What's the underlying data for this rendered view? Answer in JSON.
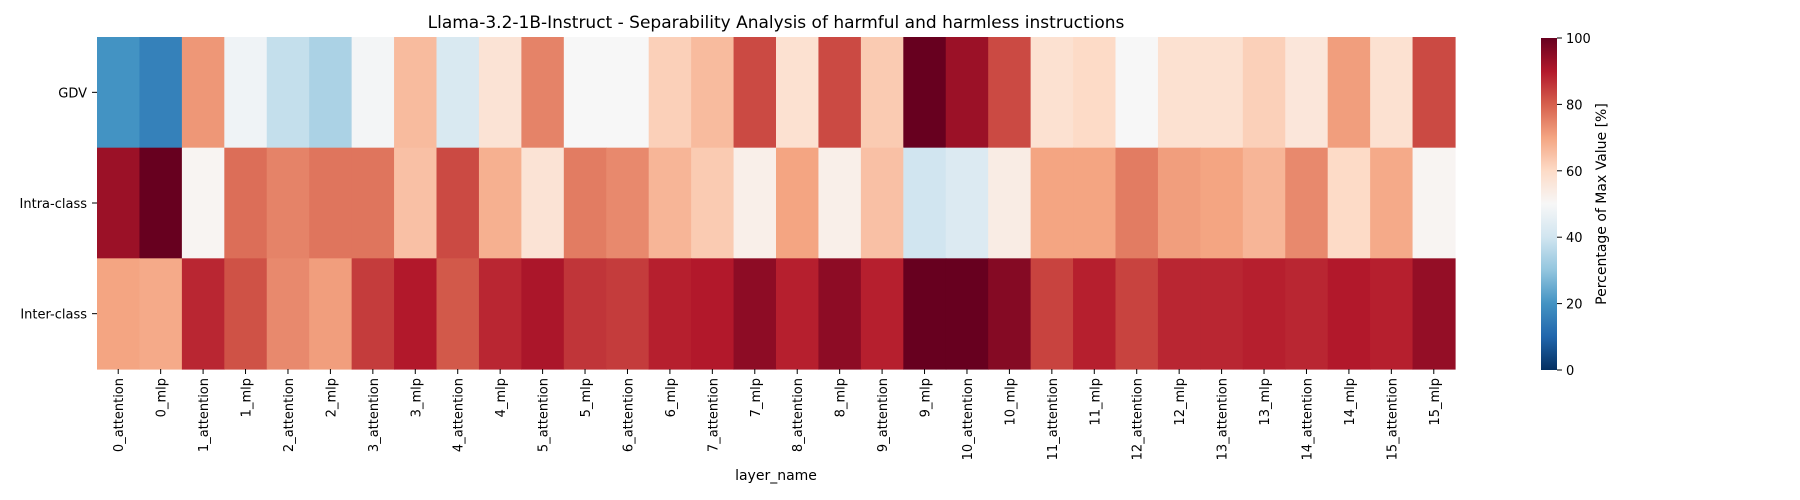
{
  "chart_data": {
    "type": "heatmap",
    "title": "Llama-3.2-1B-Instruct - Separability Analysis of harmful and harmless instructions",
    "xlabel": "layer_name",
    "ylabel": "",
    "rows": [
      "GDV",
      "Intra-class",
      "Inter-class"
    ],
    "columns": [
      "0_attention",
      "0_mlp",
      "1_attention",
      "1_mlp",
      "2_attention",
      "2_mlp",
      "3_attention",
      "3_mlp",
      "4_attention",
      "4_mlp",
      "5_attention",
      "5_mlp",
      "6_attention",
      "6_mlp",
      "7_attention",
      "7_mlp",
      "8_attention",
      "8_mlp",
      "9_attention",
      "9_mlp",
      "10_attention",
      "10_mlp",
      "11_attention",
      "11_mlp",
      "12_attention",
      "12_mlp",
      "13_attention",
      "13_mlp",
      "14_attention",
      "14_mlp",
      "15_attention",
      "15_mlp"
    ],
    "values": [
      [
        20,
        16,
        72,
        48,
        38,
        34,
        49,
        66,
        42,
        57,
        75,
        50,
        50,
        62,
        66,
        83,
        58,
        83,
        63,
        100,
        93,
        83,
        58,
        60,
        50,
        58,
        58,
        62,
        56,
        71,
        58,
        83
      ],
      [
        93,
        100,
        51,
        78,
        75,
        77,
        77,
        65,
        83,
        68,
        57,
        76,
        74,
        67,
        63,
        53,
        70,
        53,
        65,
        40,
        43,
        54,
        70,
        70,
        76,
        71,
        70,
        67,
        74,
        60,
        69,
        51
      ],
      [
        70,
        69,
        88,
        82,
        74,
        71,
        85,
        90,
        81,
        88,
        91,
        86,
        85,
        89,
        90,
        95,
        89,
        95,
        89,
        100,
        100,
        96,
        84,
        89,
        84,
        88,
        88,
        89,
        88,
        90,
        89,
        94
      ]
    ],
    "colorbar": {
      "label": "Percentage of Max Value [%]",
      "min": 0,
      "max": 100,
      "ticks": [
        0,
        20,
        40,
        60,
        80,
        100
      ],
      "colormap": "RdBu_r"
    },
    "grid": false,
    "legend": "colorbar-right"
  }
}
